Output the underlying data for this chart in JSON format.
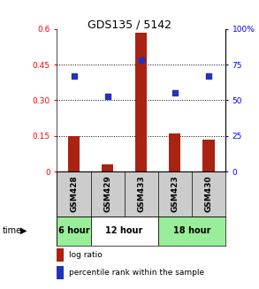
{
  "title": "GDS135 / 5142",
  "samples": [
    "GSM428",
    "GSM429",
    "GSM433",
    "GSM423",
    "GSM430"
  ],
  "log_ratio": [
    0.15,
    0.03,
    0.585,
    0.162,
    0.135
  ],
  "percentile_rank": [
    67,
    53,
    78,
    55,
    67
  ],
  "bar_color": "#aa2211",
  "dot_color": "#2233bb",
  "ylim_left": [
    0,
    0.6
  ],
  "ylim_right": [
    0,
    100
  ],
  "yticks_left": [
    0,
    0.15,
    0.3,
    0.45,
    0.6
  ],
  "ytick_labels_left": [
    "0",
    "0.15",
    "0.30",
    "0.45",
    "0.6"
  ],
  "yticks_right": [
    0,
    25,
    50,
    75,
    100
  ],
  "ytick_labels_right": [
    "0",
    "25",
    "50",
    "75",
    "100%"
  ],
  "dotted_lines": [
    0.15,
    0.3,
    0.45
  ],
  "time_groups": [
    {
      "label": "6 hour",
      "indices": [
        0
      ],
      "color": "#99ee99"
    },
    {
      "label": "12 hour",
      "indices": [
        1,
        2
      ],
      "color": "#ffffff"
    },
    {
      "label": "18 hour",
      "indices": [
        3,
        4
      ],
      "color": "#99ee99"
    }
  ],
  "legend_bar_label": "log ratio",
  "legend_dot_label": "percentile rank within the sample",
  "time_label": "time",
  "sample_bg_color": "#cccccc",
  "fig_width": 2.93,
  "fig_height": 3.27
}
